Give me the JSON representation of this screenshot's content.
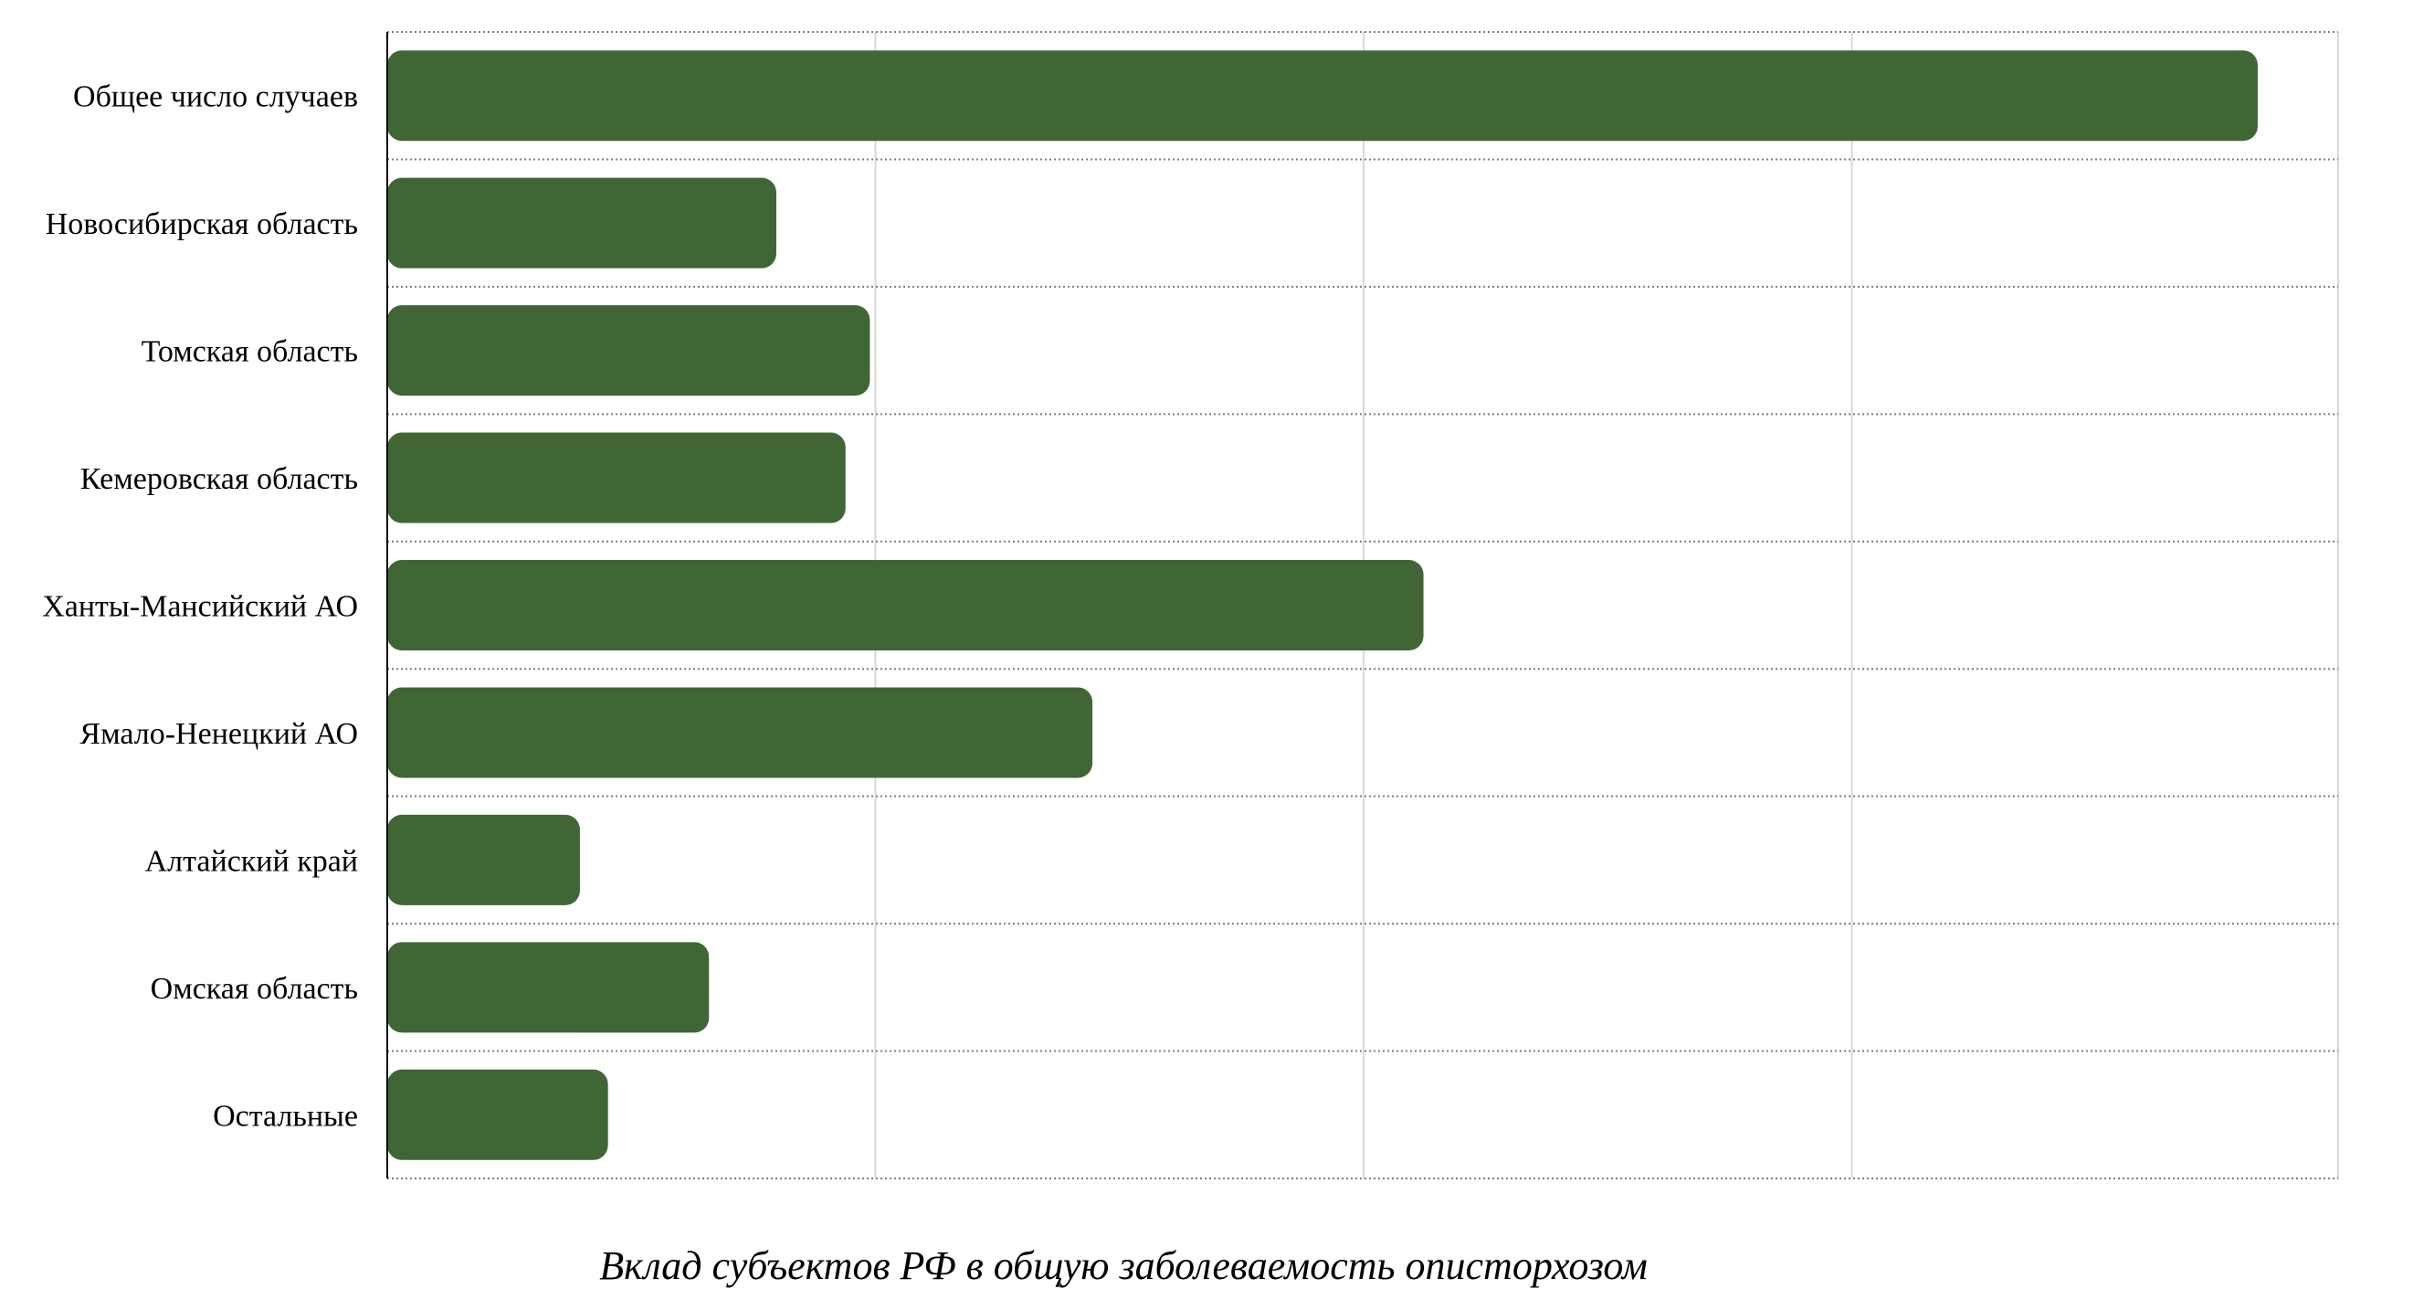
{
  "chart_data": {
    "type": "bar",
    "orientation": "horizontal",
    "title": "Вклад субъектов РФ в общую заболеваемость описторхозом",
    "categories": [
      "Общее число случаев",
      "Новосибирская область",
      "Томская область",
      "Кемеровская область",
      "Ханты-Мансийский АО",
      "Ямало-Ненецкий  АО",
      "Алтайский край",
      "Омская область",
      "Остальные"
    ],
    "values": [
      100,
      20.8,
      25.8,
      24.5,
      55.4,
      37.7,
      10.3,
      17.2,
      11.8
    ],
    "xlim": [
      0,
      104.3
    ],
    "xgrid_step": 26.1,
    "grid": true,
    "legend": "none",
    "bar_color": "#3f6634",
    "grid_color": "#d9d9d9",
    "row_divider_color": "#7f7f7f"
  }
}
